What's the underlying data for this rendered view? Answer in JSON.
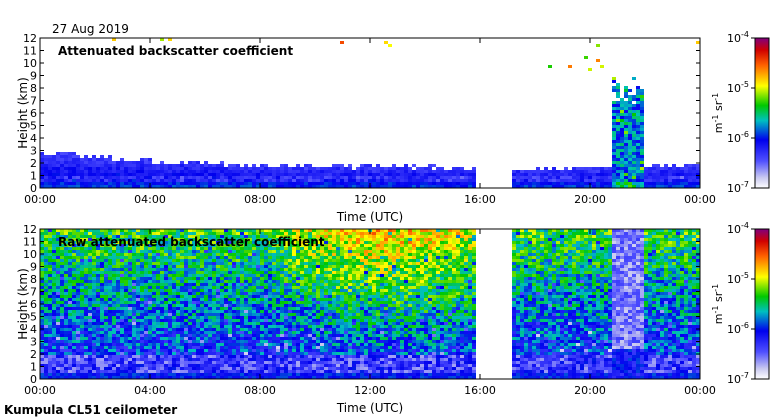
{
  "date": "27 Aug 2019",
  "instrument": "Kumpula CL51 ceilometer",
  "chart_data": [
    {
      "type": "heatmap",
      "title": "Attenuated backscatter coefficient",
      "xlabel": "Time (UTC)",
      "ylabel": "Height (km)",
      "x_ticks": [
        "00:00",
        "04:00",
        "08:00",
        "12:00",
        "16:00",
        "20:00",
        "00:00"
      ],
      "xlim_hours": [
        0,
        24
      ],
      "y_ticks": [
        0,
        1,
        2,
        3,
        4,
        5,
        6,
        7,
        8,
        9,
        10,
        11,
        12
      ],
      "ylim_km": [
        0,
        12
      ],
      "colorbar": {
        "scale": "log",
        "range": [
          1e-07,
          0.0001
        ],
        "ticks": [
          "10",
          "10",
          "10",
          "10"
        ],
        "tick_exponents": [
          "-7",
          "-6",
          "-5",
          "-4"
        ],
        "unit": "m",
        "unit_sup1": "-1",
        "unit_mid": " sr",
        "unit_sup2": "-1"
      },
      "data_gap_hours": [
        15.9,
        17.2
      ],
      "boundary_layer_top_km": [
        [
          0,
          2.8
        ],
        [
          4,
          2.2
        ],
        [
          8,
          1.8
        ],
        [
          12,
          1.7
        ],
        [
          16,
          1.6
        ],
        [
          17.2,
          1.5
        ],
        [
          20,
          1.6
        ],
        [
          24,
          1.8
        ]
      ],
      "precipitation_hours": [
        20.8,
        22.0
      ],
      "precipitation_top_km": 9.0,
      "elevated_cloud_hours": [
        18.0,
        20.5
      ],
      "elevated_cloud_km": [
        9.3,
        10.8
      ]
    },
    {
      "type": "heatmap",
      "title": "Raw attenuated backscatter coefficient",
      "xlabel": "Time (UTC)",
      "ylabel": "Height (km)",
      "x_ticks": [
        "00:00",
        "04:00",
        "08:00",
        "12:00",
        "16:00",
        "20:00",
        "00:00"
      ],
      "xlim_hours": [
        0,
        24
      ],
      "y_ticks": [
        0,
        1,
        2,
        3,
        4,
        5,
        6,
        7,
        8,
        9,
        10,
        11,
        12
      ],
      "ylim_km": [
        0,
        12
      ],
      "colorbar": {
        "scale": "log",
        "range": [
          1e-07,
          0.0001
        ],
        "ticks": [
          "10",
          "10",
          "10",
          "10"
        ],
        "tick_exponents": [
          "-7",
          "-6",
          "-5",
          "-4"
        ],
        "unit": "m",
        "unit_sup1": "-1",
        "unit_mid": " sr",
        "unit_sup2": "-1"
      },
      "data_gap_hours": [
        15.9,
        17.2
      ],
      "precipitation_hours": [
        20.8,
        22.0
      ]
    }
  ]
}
